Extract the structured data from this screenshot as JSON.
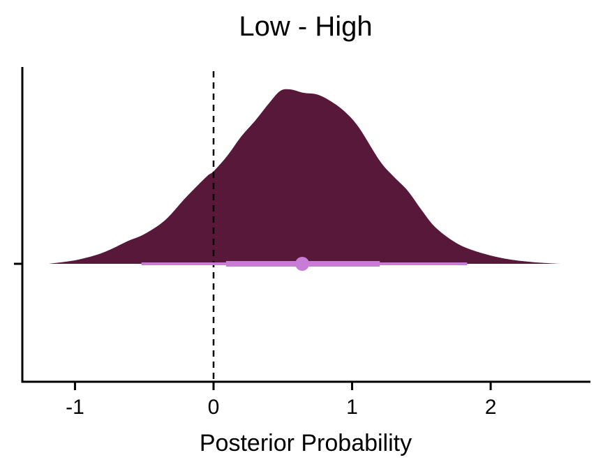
{
  "chart_data": {
    "type": "area",
    "title": "Low - High",
    "xlabel": "Posterior Probability",
    "ylabel": "",
    "xlim": [
      -1.38,
      2.72
    ],
    "xticks": [
      -1,
      0,
      1,
      2
    ],
    "xtick_labels": [
      "-1",
      "0",
      "1",
      "2"
    ],
    "yticks": [
      0
    ],
    "ytick_labels": [
      ""
    ],
    "reference_line": {
      "x": 0,
      "style": "dashed"
    },
    "density": {
      "x": [
        -1.19,
        -1.0,
        -0.85,
        -0.75,
        -0.62,
        -0.5,
        -0.35,
        -0.2,
        -0.05,
        0.0,
        0.1,
        0.2,
        0.3,
        0.4,
        0.48,
        0.55,
        0.65,
        0.75,
        0.85,
        0.95,
        1.05,
        1.2,
        1.3,
        1.4,
        1.5,
        1.6,
        1.75,
        1.9,
        2.1,
        2.3,
        2.5
      ],
      "y": [
        0.0,
        0.02,
        0.05,
        0.08,
        0.13,
        0.17,
        0.25,
        0.38,
        0.5,
        0.53,
        0.62,
        0.73,
        0.82,
        0.92,
        0.99,
        1.0,
        0.98,
        0.97,
        0.93,
        0.87,
        0.78,
        0.59,
        0.5,
        0.42,
        0.31,
        0.21,
        0.12,
        0.07,
        0.03,
        0.01,
        0.0
      ],
      "color": "#581839"
    },
    "interval": {
      "point": 0.64,
      "inner": [
        0.09,
        1.2
      ],
      "outer": [
        -0.52,
        1.83
      ],
      "color": "#c77cd6"
    },
    "grid": false,
    "legend": "none"
  }
}
